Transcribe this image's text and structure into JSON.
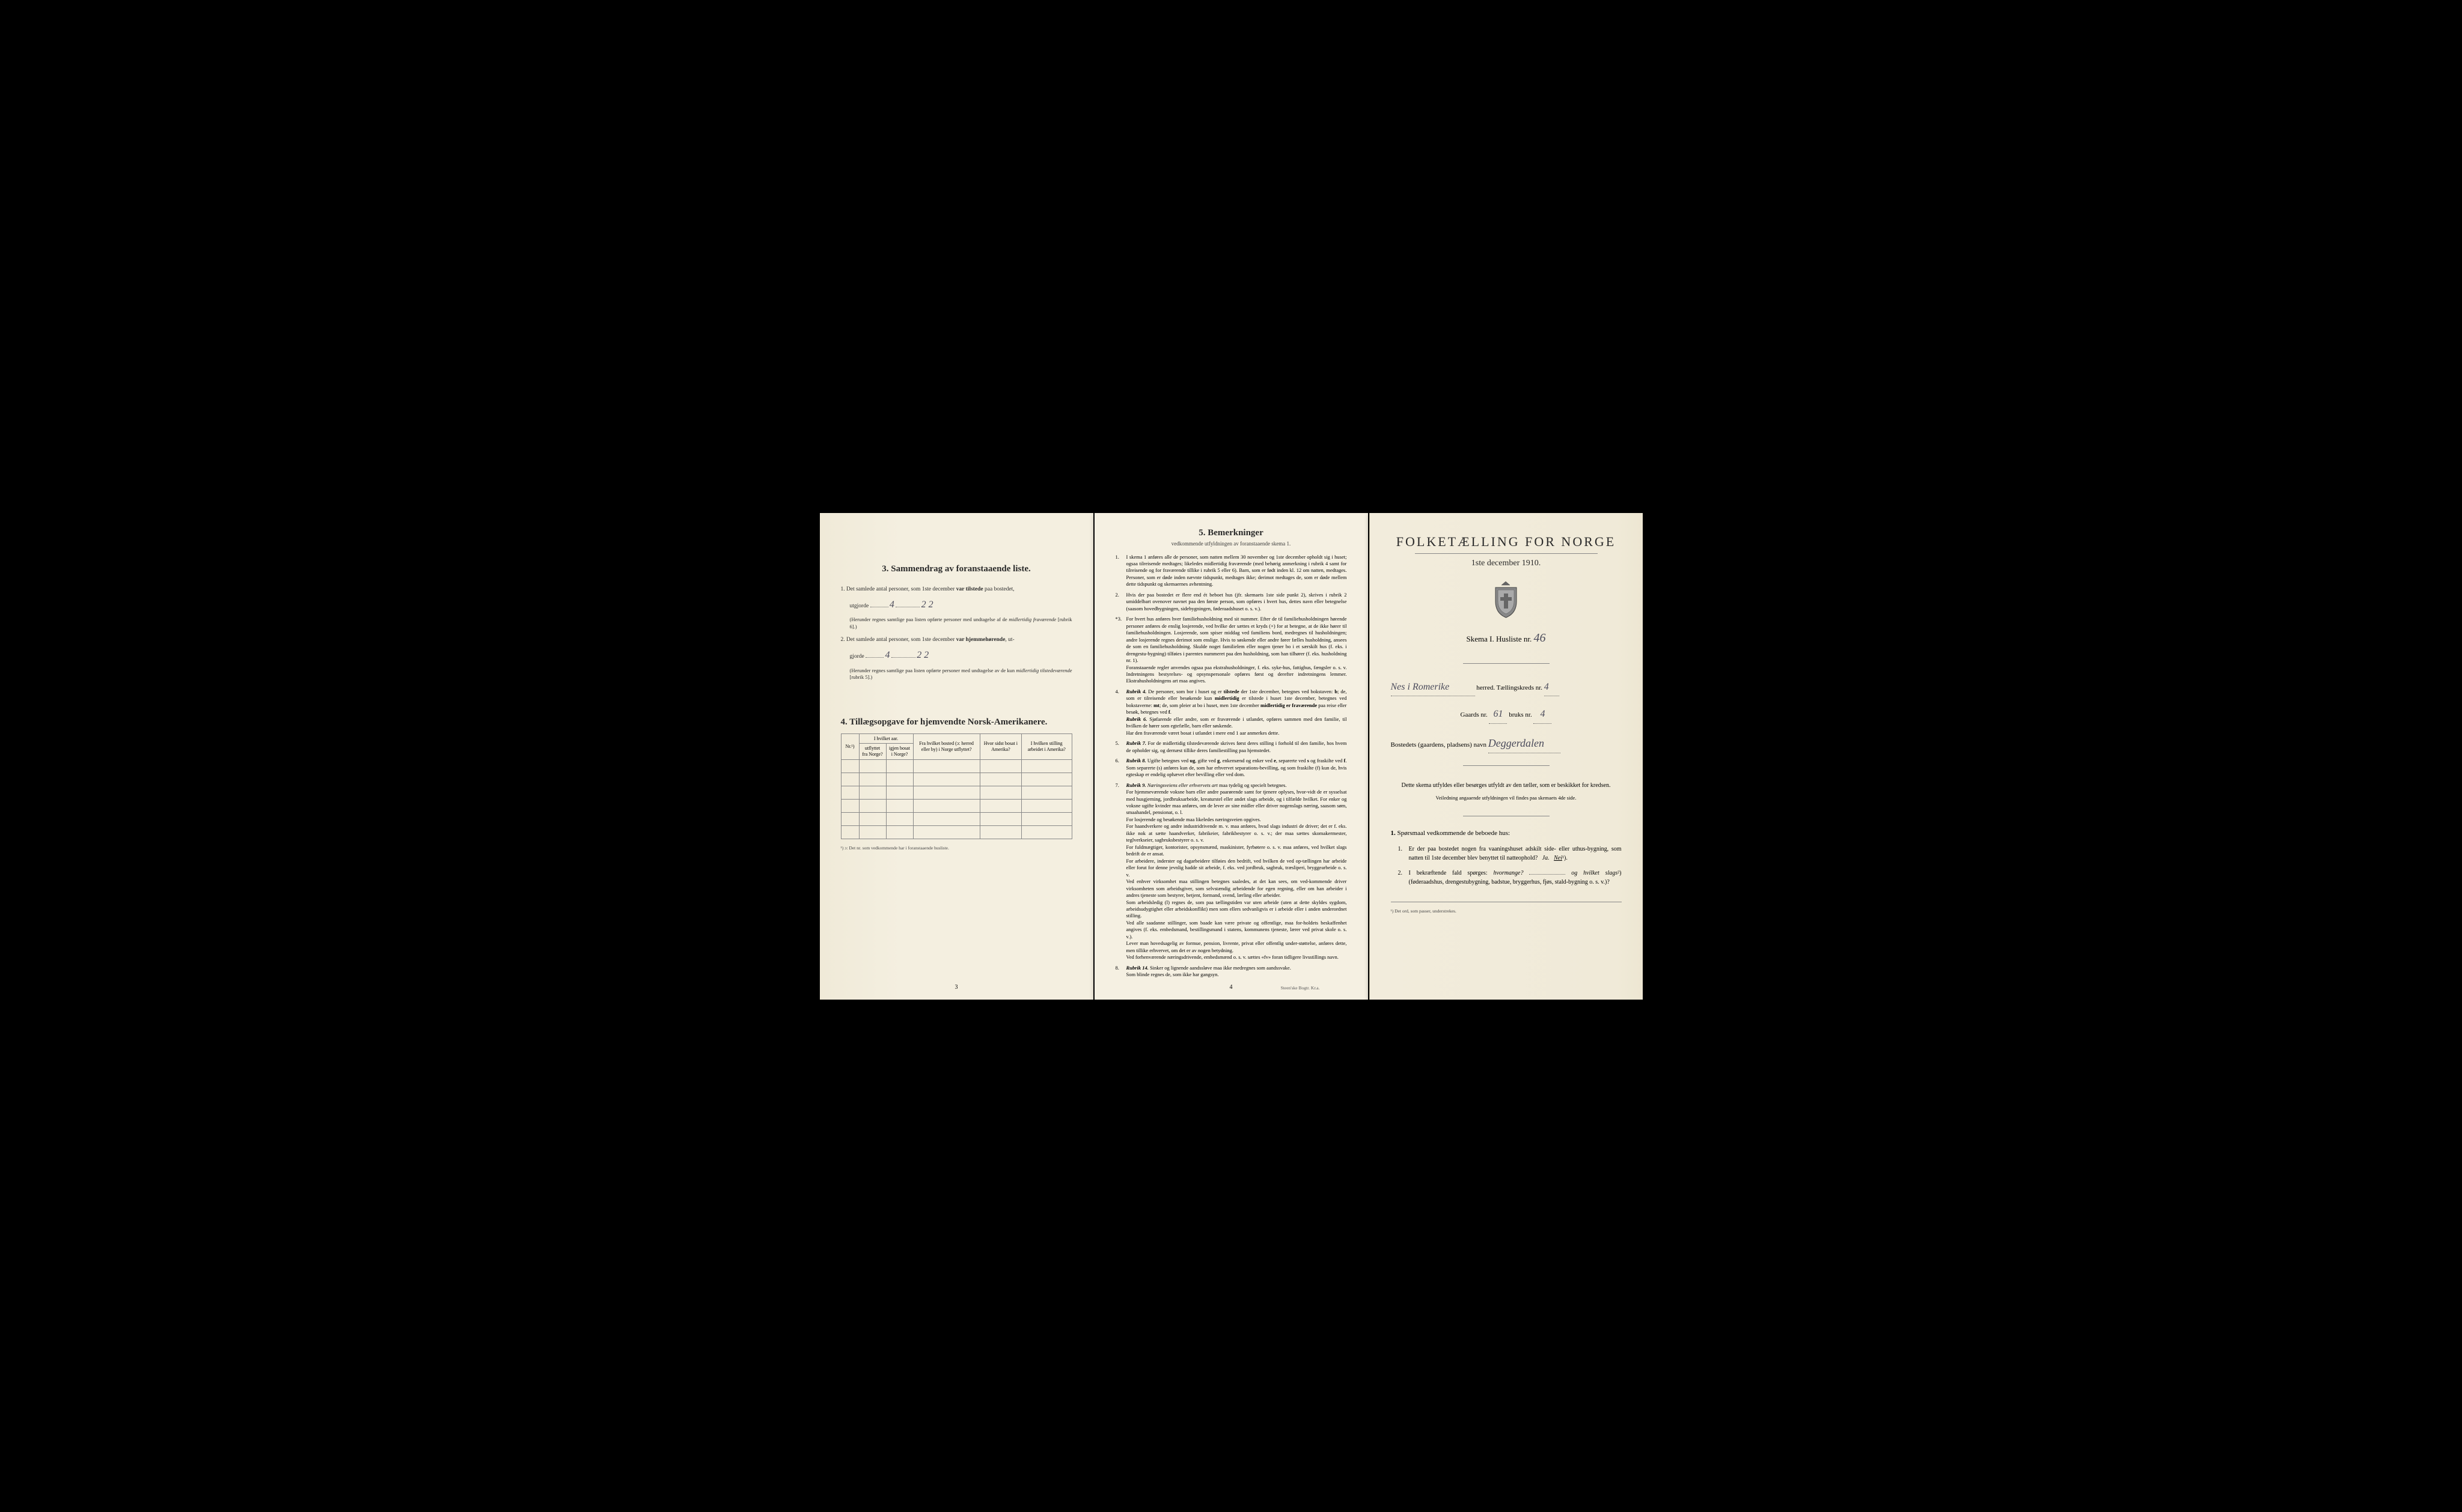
{
  "colors": {
    "background": "#000000",
    "paper": "#f4efe0",
    "paper_left": "#f0ead8",
    "paper_right": "#f0ead8",
    "text": "#2a2a2a",
    "handwriting": "#4a4a5a",
    "border": "#888888"
  },
  "typography": {
    "body_fontsize": 9.5,
    "small_fontsize": 8.5,
    "heading_fontsize": 15,
    "title_fontsize": 22,
    "font_family": "Times New Roman"
  },
  "page_left": {
    "section3": {
      "heading": "3.   Sammendrag av foranstaaende liste.",
      "item1_prefix": "1.  Det samlede antal personer, som 1ste december ",
      "item1_bold": "var tilstede",
      "item1_suffix": " paa bostedet,",
      "item1_line2": "utgjorde",
      "item1_hand1": "4",
      "item1_hand2": "2 2",
      "item1_note": "(Herunder regnes samtlige paa listen opførte personer med undtagelse af de ",
      "item1_note_italic": "midlertidig fraværende",
      "item1_note_suffix": " [rubrik 6].)",
      "item2_prefix": "2.  Det samlede antal personer, som 1ste december ",
      "item2_bold": "var hjemmehørende",
      "item2_suffix": ", ut-",
      "item2_line2": "gjorde",
      "item2_hand1": "4",
      "item2_hand2": "2 2",
      "item2_note": "(Herunder regnes samtlige paa listen opførte personer med undtagelse av de kun ",
      "item2_note_italic": "midlertidig tilstedeværende",
      "item2_note_suffix": " [rubrik 5].)"
    },
    "section4": {
      "heading": "4.   Tillægsopgave for hjemvendte Norsk-Amerikanere.",
      "table": {
        "col1_header": "Nr.¹)",
        "col2_grouphead": "I hvilket aar.",
        "col2a_header": "utflyttet fra Norge?",
        "col2b_header": "igjen bosat i Norge?",
        "col3_header": "Fra hvilket bosted (ɔ: herred eller by) i Norge utflyttet?",
        "col4_header": "Hvor sidst bosat i Amerika?",
        "col5_header": "I hvilken stilling arbeidet i Amerika?",
        "empty_rows": 6
      },
      "footnote": "¹) ɔ: Det nr. som vedkommende har i foranstaaende husliste."
    },
    "page_number": "3"
  },
  "page_middle": {
    "heading": "5.   Bemerkninger",
    "subheading": "vedkommende utfyldningen av foranstaaende skema 1.",
    "items": [
      {
        "num": "1.",
        "text": "I skema 1 anføres alle de personer, som natten mellem 30 november og 1ste december opholdt sig i huset; ogsaa tilreisende medtages; likeledes midlertidig fraværende (med behørig anmerkning i rubrik 4 samt for tilreisende og for fraværende tillike i rubrik 5 eller 6). Barn, som er født inden kl. 12 om natten, medtages. Personer, som er døde inden nævnte tidspunkt, medtages ikke; derimot medtages de, som er døde mellem dette tidspunkt og skemaernes avhentning."
      },
      {
        "num": "2.",
        "text": "Hvis der paa bostedet er flere end ét beboet hus (jfr. skemaets 1ste side punkt 2), skrives i rubrik 2 umiddelbart ovenover navnet paa den første person, som opføres i hvert hus, dettes navn eller betegnelse (saasom hovedbygningen, sidebygningen, føderaadshuset o. s. v.)."
      },
      {
        "num": "*3.",
        "text": "For hvert hus anføres hver familiehusholdning med sit nummer. Efter de til familiehusholdningen hørende personer anføres de enslig losjerende, ved hvilke der sættes et kryds (×) for at betegne, at de ikke hører til familiehusholdningen. Losjerende, som spiser middag ved familiens bord, medregnes til husholdningen; andre losjerende regnes derimot som enslige. Hvis to søskende eller andre fører fælles husholdning, ansees de som en familiehusholdning. Skulde noget familielem eller nogen tjener bo i et særskilt hus (f. eks. i drengestu-bygning) tilføies i parentes nummeret paa den husholdning, som han tilhører (f. eks. husholdning nr. 1).",
        "text2": "     Foranstaaende regler anvendes ogsaa paa ekstrahusholdninger, f. eks. syke-hus, fattighus, fængsler o. s. v. Indretningens bestyrelses- og opsynspersonale opføres først og derefter indretningens lemmer. Ekstrahusholdningens art maa angives."
      },
      {
        "num": "4.",
        "text_parts": [
          {
            "italic": true,
            "bold": true,
            "text": "Rubrik 4."
          },
          {
            "text": " De personer, som bor i huset og er "
          },
          {
            "bold": true,
            "text": "tilstede"
          },
          {
            "text": " der 1ste december, betegnes ved bokstaven: "
          },
          {
            "bold": true,
            "text": "b"
          },
          {
            "text": "; de, som er tilreisende eller besøkende kun "
          },
          {
            "bold": true,
            "text": "midlertidig"
          },
          {
            "text": " er tilstede i huset 1ste december, betegnes ved bokstaverne: "
          },
          {
            "bold": true,
            "text": "mt"
          },
          {
            "text": "; de, som pleier at bo i huset, men 1ste december "
          },
          {
            "bold": true,
            "text": "midlertidig er fraværende"
          },
          {
            "text": " paa reise eller besøk, betegnes ved "
          },
          {
            "bold": true,
            "text": "f"
          },
          {
            "text": "."
          }
        ],
        "rubrik6_label": "Rubrik 6.",
        "rubrik6_text": " Sjøfarende eller andre, som er fraværende i utlandet, opføres sammen med den familie, til hvilken de hører som egtefælle, barn eller søskende.",
        "rubrik6_text2": "     Har den fraværende været bosat i utlandet i mere end 1 aar anmerkes dette."
      },
      {
        "num": "5.",
        "text_parts": [
          {
            "italic": true,
            "bold": true,
            "text": "Rubrik 7."
          },
          {
            "text": " For de midlertidig tilstedeværende skrives først deres stilling i forhold til den familie, hos hvem de opholder sig, og dernæst tillike deres familiestilling paa hjemstedet."
          }
        ]
      },
      {
        "num": "6.",
        "text_parts": [
          {
            "italic": true,
            "bold": true,
            "text": "Rubrik 8."
          },
          {
            "text": " Ugifte betegnes ved "
          },
          {
            "bold": true,
            "text": "ug"
          },
          {
            "text": ", gifte ved "
          },
          {
            "bold": true,
            "text": "g"
          },
          {
            "text": ", enkemænd og enker ved "
          },
          {
            "bold": true,
            "text": "e"
          },
          {
            "text": ", separerte ved "
          },
          {
            "bold": true,
            "text": "s"
          },
          {
            "text": " og fraskilte ved "
          },
          {
            "bold": true,
            "text": "f"
          },
          {
            "text": ". Som separerte (s) anføres kun de, som har erhvervet separations-bevilling, og som fraskilte (f) kun de, hvis egteskap er endelig ophævet efter bevilling eller ved dom."
          }
        ]
      },
      {
        "num": "7.",
        "text_parts": [
          {
            "italic": true,
            "bold": true,
            "text": "Rubrik 9."
          },
          {
            "text": " "
          },
          {
            "italic": true,
            "text": "Næringsveiens eller erhvervets art"
          },
          {
            "text": " maa tydelig og specielt betegnes."
          }
        ],
        "para2": "     For hjemmeværende voksne barn eller andre paarørende samt for tjenere oplyses, hvor-vidt de er sysselsat med husgjerning, jordbruksarbeide, kreaturstel eller andet slags arbeide, og i tilfælde hvilket. For enker og voksne ugifte kvinder maa anføres, om de lever av sine midler eller driver nogenslags næring, saasom søm, smaahandel, pensionat, o. l.",
        "para3": "     For losjerende og besøkende maa likeledes næringsveien opgives.",
        "para4": "     For haandverkere og andre industridrivende m. v. maa anføres, hvad slags industri de driver; det er f. eks. ikke nok at sætte haandverker, fabrikeier, fabrikbestyrer o. s. v.; der maa sættes skomakermester, teglverkseier, sagbruksbestyrer o. s. v.",
        "para5": "     For fuldmægtiger, kontorister, opsynsmænd, maskinister, fyrbøtere o. s. v. maa anføres, ved hvilket slags bedrift de er ansat.",
        "para6": "     For arbeidere, inderster og dagarbeidere tilføies den bedrift, ved hvilken de ved op-tællingen har arbeide eller forut for denne jevnlig hadde sit arbeide, f. eks. ved jordbruk, sagbruk, træsliperi, bryggearbeide o. s. v.",
        "para7": "     Ved enhver virksomhet maa stillingen betegnes saaledes, at det kan sees, om ved-kommende driver virksomheten som arbeidsgiver, som selvstændig arbeidende for egen regning, eller om han arbeider i andres tjeneste som bestyrer, betjent, formand, svend, lærling eller arbeider.",
        "para8": "     Som arbeidsledig (l) regnes de, som paa tællingstiden var uten arbeide (uten at dette skyldes sygdom, arbeidsudygtighet eller arbeidskonflikt) men som ellers sedvanligvis er i arbeide eller i anden underordnet stilling.",
        "para9": "     Ved alle saadanne stillinger, som baade kan være private og offentlige, maa for-holdets beskaffenhet angives (f. eks. embedsmand, bestillingsmand i statens, kommunens tjeneste, lærer ved privat skole o. s. v.).",
        "para10": "     Lever man hovedsagelig av formue, pension, livrente, privat eller offentlig under-støttelse, anføres dette, men tillike erhvervet, om det er av nogen betydning.",
        "para11": "     Ved forhenværende næringsdrivende, embedsmænd o. s. v. sættes «fv» foran tidligere livsstillings navn."
      },
      {
        "num": "8.",
        "text_parts": [
          {
            "italic": true,
            "bold": true,
            "text": "Rubrik 14."
          },
          {
            "text": " Sinker og lignende aandssløve maa ikke medregnes som aandssvake."
          }
        ],
        "text2": "     Som blinde regnes de, som ikke har gangsyn."
      }
    ],
    "page_number": "4",
    "footer": "Steen'ske Bogtr. Kr.a."
  },
  "page_right": {
    "title": "FOLKETÆLLING FOR NORGE",
    "date": "1ste december 1910.",
    "skema_label": "Skema I.   Husliste nr.",
    "husliste_nr": "46",
    "herred_hand": "Nes i Romerike",
    "herred_label": "herred.  Tællingskreds nr.",
    "kreds_nr": "4",
    "gaards_label": "Gaards nr.",
    "gaards_nr": "61",
    "bruks_label": "bruks nr.",
    "bruks_nr": "4",
    "bosted_label": "Bostedets (gaardens, pladsens) navn",
    "bosted_hand": "Deggerdalen",
    "instruction": "Dette skema utfyldes eller besørges utfyldt av den tæller, som er beskikket for kredsen.",
    "instruction_sub": "Veiledning angaaende utfyldningen vil findes paa skemaets 4de side.",
    "q_heading_num": "1.",
    "q_heading": "Spørsmaal vedkommende de beboede hus:",
    "q1_num": "1.",
    "q1_text": "Er der paa bostedet nogen fra vaaningshuset adskilt side- eller uthus-bygning, som natten til 1ste december blev benyttet til natteophold?",
    "q1_ja": "Ja.",
    "q1_nei": "Nei",
    "q1_sup": "¹).",
    "q2_num": "2.",
    "q2_text_a": "I bekræftende fald spørges: ",
    "q2_text_italic1": "hvormange?",
    "q2_text_b": "og ",
    "q2_text_italic2": "hvilket slags",
    "q2_sup": "²)",
    "q2_text_c": "(føderaadshus, drengestubygning, badstue, bryggerhus, fjøs, stald-bygning o. s. v.)?",
    "footnote": "¹) Det ord, som passer, understrekes."
  }
}
